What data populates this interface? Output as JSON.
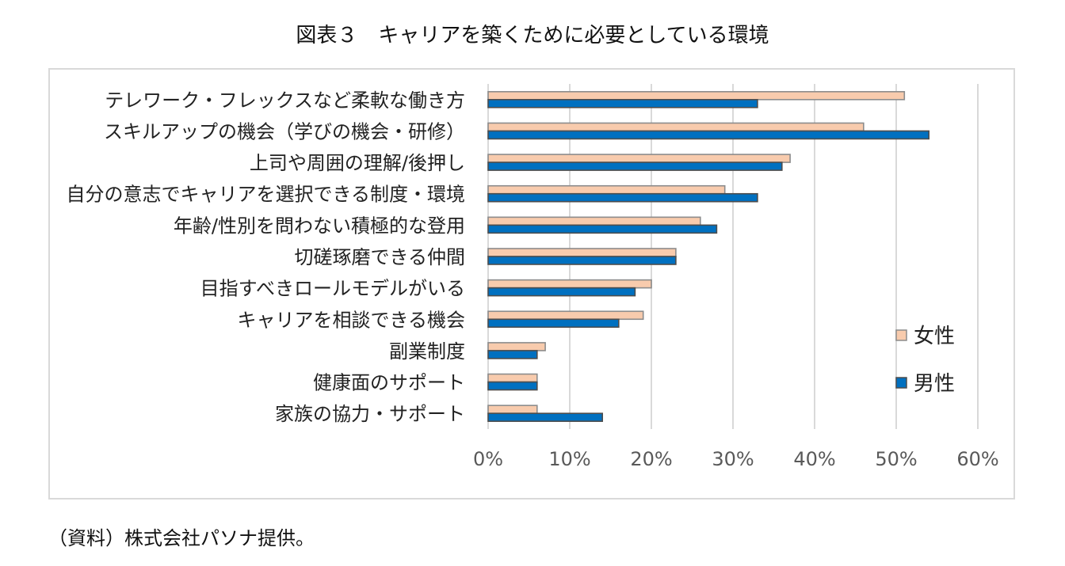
{
  "caption": {
    "title": "図表３　キャリアを築くために必要としている環境",
    "source": "（資料）株式会社パソナ提供。"
  },
  "chart_data": {
    "type": "bar",
    "orientation": "horizontal",
    "categories": [
      "テレワーク・フレックスなど柔軟な働き方",
      "スキルアップの機会（学びの機会・研修）",
      "上司や周囲の理解/後押し",
      "自分の意志でキャリアを選択できる制度・環境",
      "年齢/性別を問わない積極的な登用",
      "切磋琢磨できる仲間",
      "目指すべきロールモデルがいる",
      "キャリアを相談できる機会",
      "副業制度",
      "健康面のサポート",
      "家族の協力・サポート"
    ],
    "series": [
      {
        "name": "女性",
        "color": "#f8cbad",
        "values": [
          51,
          46,
          37,
          29,
          26,
          23,
          20,
          19,
          7,
          6,
          6
        ]
      },
      {
        "name": "男性",
        "color": "#0070c0",
        "values": [
          33,
          54,
          36,
          33,
          28,
          23,
          18,
          16,
          6,
          6,
          14
        ]
      }
    ],
    "xlim": [
      0,
      60
    ],
    "xticks": [
      0,
      10,
      20,
      30,
      40,
      50,
      60
    ],
    "tick_format": "%",
    "grid": true,
    "legend": "right"
  }
}
